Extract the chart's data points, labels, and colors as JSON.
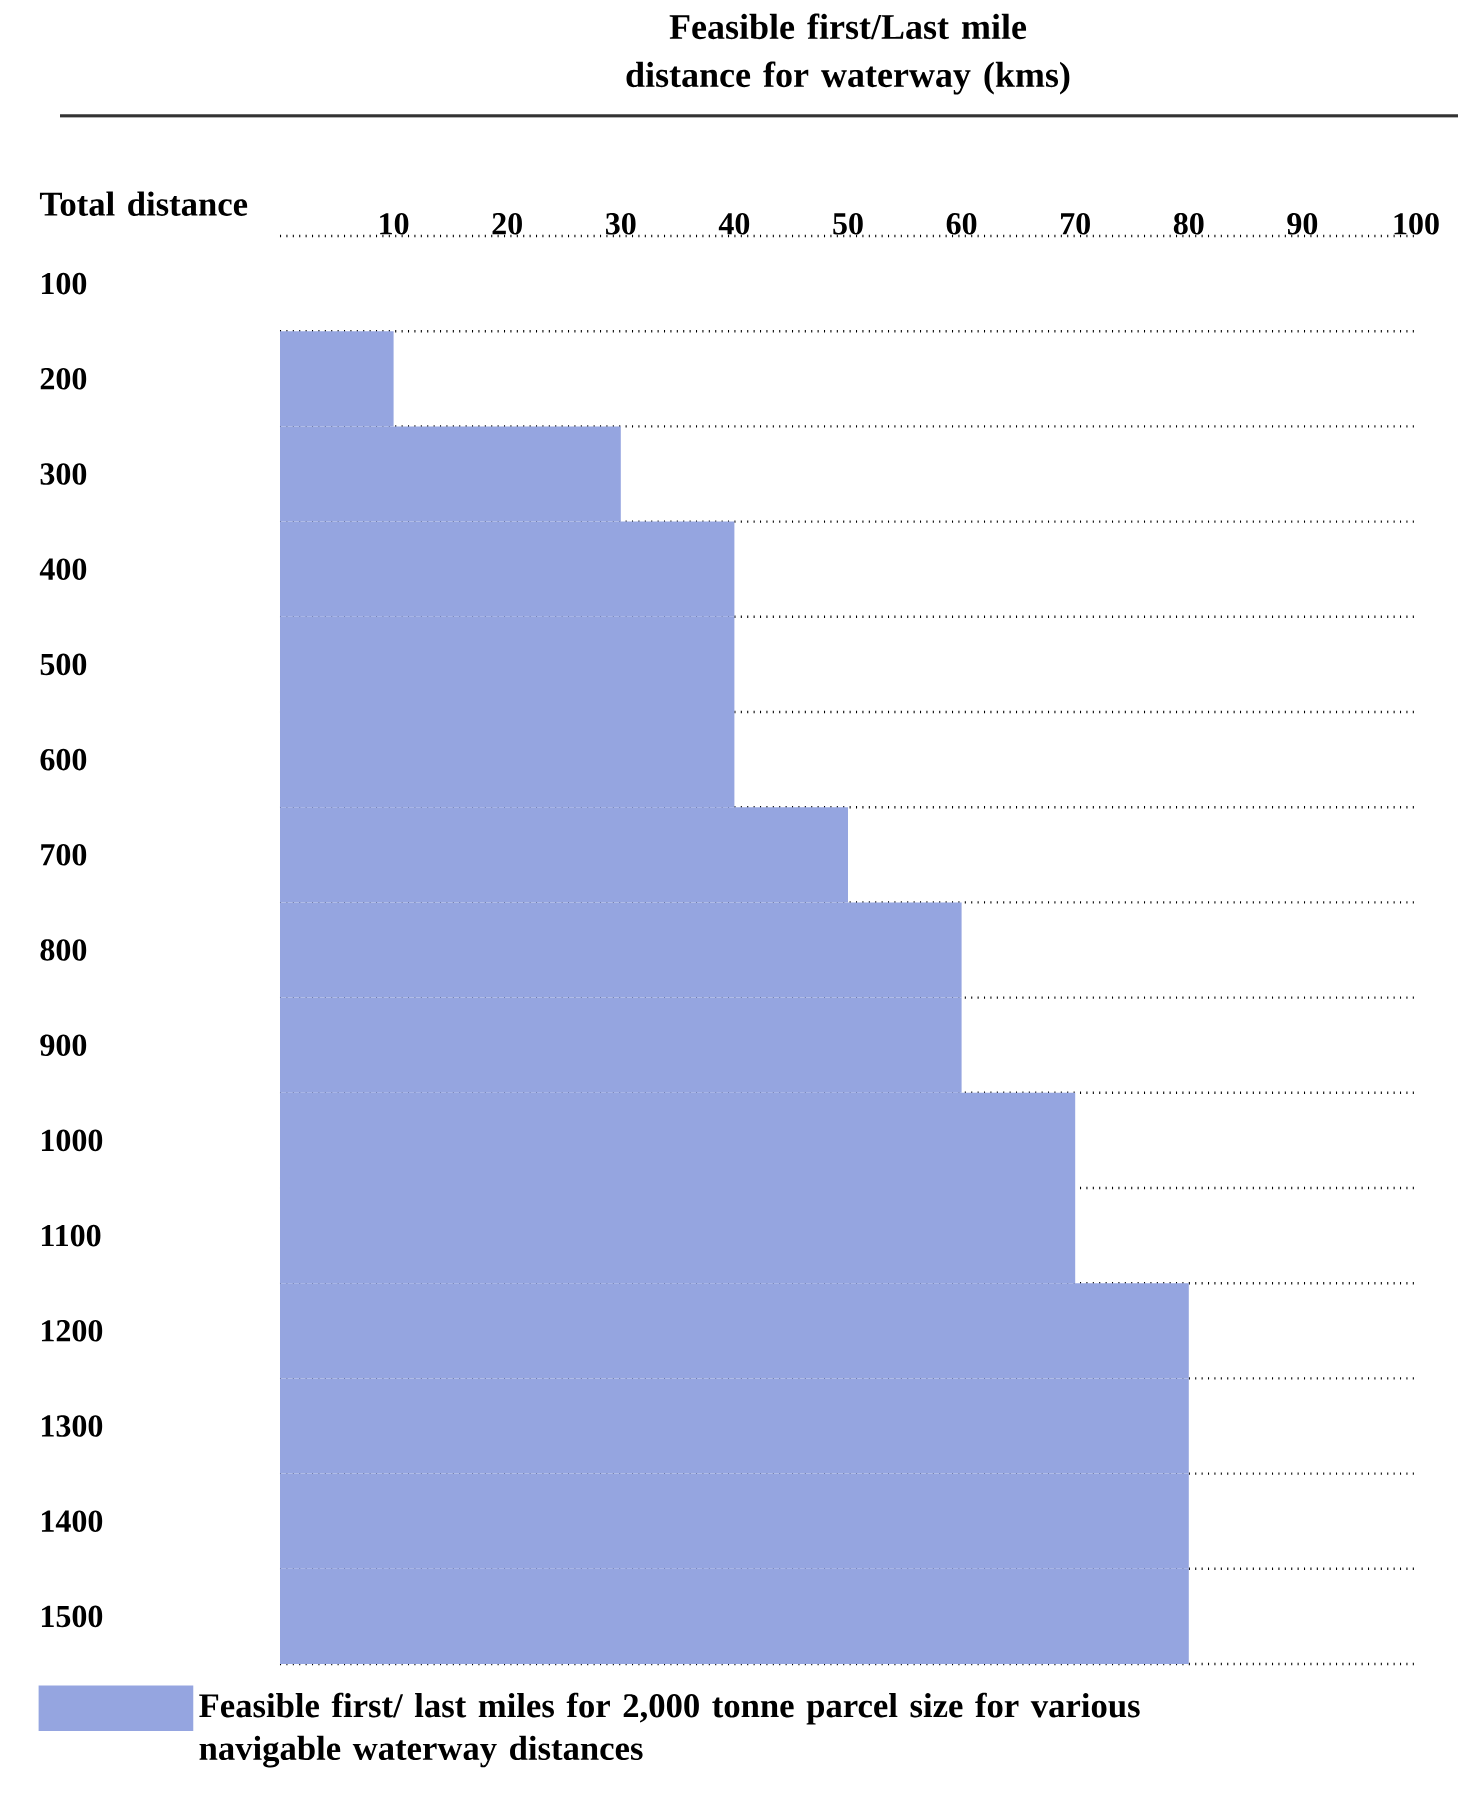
{
  "chart_data": {
    "type": "bar",
    "orientation": "horizontal",
    "title": "Feasible first/Last mile distance for waterway (kms)",
    "ylabel": "Total distance",
    "categories": [
      "100",
      "200",
      "300",
      "400",
      "500",
      "600",
      "700",
      "800",
      "900",
      "1000",
      "1100",
      "1200",
      "1300",
      "1400",
      "1500"
    ],
    "series": [
      {
        "name": "Feasible first/ last miles for 2,000 tonne parcel size for various navigable waterway distances",
        "color": "#95a5e0",
        "values": [
          null,
          10,
          30,
          40,
          40,
          40,
          50,
          60,
          60,
          70,
          70,
          80,
          80,
          80,
          80
        ]
      }
    ],
    "xlim": [
      0,
      100
    ],
    "xticks": [
      10,
      20,
      30,
      40,
      50,
      60,
      70,
      80,
      90,
      100
    ],
    "grid": "y",
    "legend": "bottom"
  }
}
